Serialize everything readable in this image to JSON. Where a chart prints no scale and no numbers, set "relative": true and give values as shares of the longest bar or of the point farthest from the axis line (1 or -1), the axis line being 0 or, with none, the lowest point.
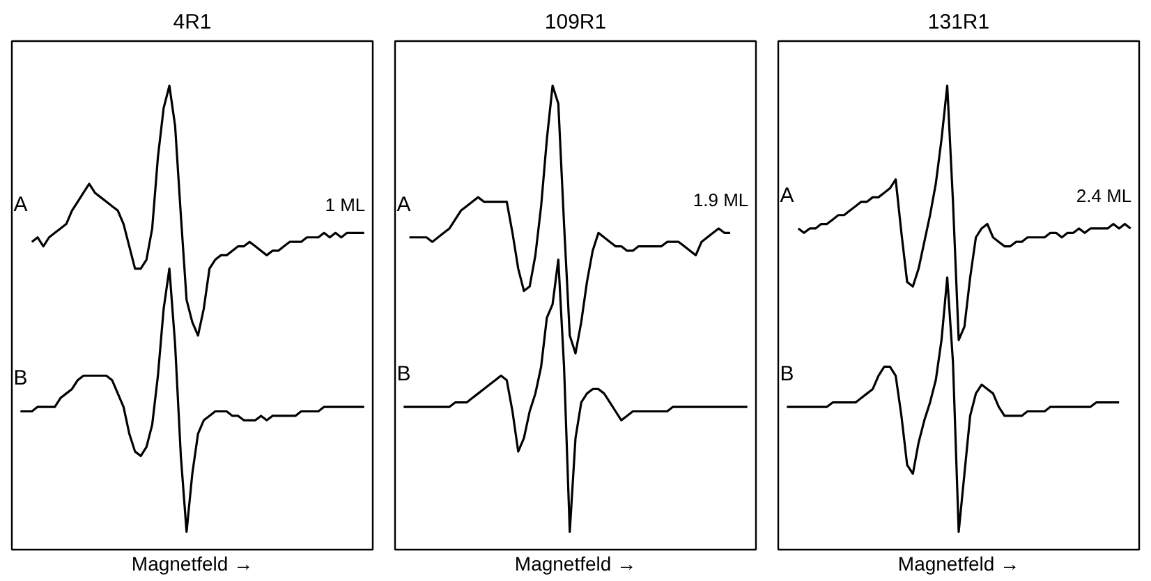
{
  "chart_data": [
    {
      "type": "line",
      "title": "4R1",
      "xlabel": "Magnetfeld →",
      "relative": true,
      "tick_labels": false,
      "grid": false,
      "line_style": "solid",
      "marker": "none",
      "categories": [
        null,
        null,
        null,
        null,
        null,
        null,
        null,
        null,
        null,
        null,
        null,
        null,
        null,
        null,
        null,
        null,
        null,
        null,
        null,
        null,
        null,
        null,
        null,
        null,
        null,
        null,
        null,
        null,
        null,
        null,
        null,
        null,
        null,
        null,
        null,
        null,
        null,
        null,
        null,
        null,
        null,
        null,
        null,
        null,
        null,
        null,
        null,
        null,
        null,
        null,
        null,
        null,
        null,
        null,
        null,
        null,
        null,
        null,
        null,
        null,
        null
      ],
      "series": [
        {
          "name": "A",
          "color": "#000000",
          "values": [
            null,
            null,
            0.65,
            0.66,
            0.64,
            0.66,
            0.67,
            0.68,
            0.69,
            0.72,
            0.74,
            0.76,
            0.78,
            0.76,
            0.75,
            0.74,
            0.73,
            0.72,
            0.69,
            0.64,
            0.59,
            0.59,
            0.61,
            0.68,
            0.84,
            0.95,
            1.0,
            0.91,
            0.71,
            0.52,
            0.47,
            0.44,
            0.5,
            0.59,
            0.61,
            0.62,
            0.62,
            0.63,
            0.64,
            0.64,
            0.65,
            0.64,
            0.63,
            0.62,
            0.63,
            0.63,
            0.64,
            0.65,
            0.65,
            0.65,
            0.66,
            0.66,
            0.66,
            0.67,
            0.66,
            0.67,
            0.66,
            0.67,
            0.67,
            0.67,
            0.67
          ]
        },
        {
          "name": "B",
          "color": "#000000",
          "values": [
            0.27,
            0.27,
            0.27,
            0.28,
            0.28,
            0.28,
            0.28,
            0.3,
            0.31,
            0.32,
            0.34,
            0.35,
            0.35,
            0.35,
            0.35,
            0.35,
            0.34,
            0.31,
            0.28,
            0.22,
            0.18,
            0.17,
            0.19,
            0.24,
            0.35,
            0.5,
            0.59,
            0.42,
            0.17,
            0.0,
            0.13,
            0.22,
            0.25,
            0.26,
            0.27,
            0.27,
            0.27,
            0.26,
            0.26,
            0.25,
            0.25,
            0.25,
            0.26,
            0.25,
            0.26,
            0.26,
            0.26,
            0.26,
            0.26,
            0.27,
            0.27,
            0.27,
            0.27,
            0.28,
            0.28,
            0.28,
            0.28,
            0.28,
            0.28,
            0.28,
            0.28
          ]
        }
      ],
      "annotations": [
        "1 ML"
      ]
    },
    {
      "type": "line",
      "title": "109R1",
      "xlabel": "Magnetfeld →",
      "relative": true,
      "tick_labels": false,
      "grid": false,
      "line_style": "solid",
      "marker": "none",
      "categories": [
        null,
        null,
        null,
        null,
        null,
        null,
        null,
        null,
        null,
        null,
        null,
        null,
        null,
        null,
        null,
        null,
        null,
        null,
        null,
        null,
        null,
        null,
        null,
        null,
        null,
        null,
        null,
        null,
        null,
        null,
        null,
        null,
        null,
        null,
        null,
        null,
        null,
        null,
        null,
        null,
        null,
        null,
        null,
        null,
        null,
        null,
        null,
        null,
        null,
        null,
        null,
        null,
        null,
        null,
        null,
        null,
        null,
        null,
        null,
        null,
        null
      ],
      "series": [
        {
          "name": "A",
          "color": "#000000",
          "values": [
            null,
            0.66,
            0.66,
            0.66,
            0.66,
            0.65,
            0.66,
            0.67,
            0.68,
            0.7,
            0.72,
            0.73,
            0.74,
            0.75,
            0.74,
            0.74,
            0.74,
            0.74,
            0.74,
            0.67,
            0.59,
            0.54,
            0.55,
            0.62,
            0.73,
            0.88,
            1.0,
            0.96,
            0.69,
            0.44,
            0.4,
            0.47,
            0.56,
            0.63,
            0.67,
            0.66,
            0.65,
            0.64,
            0.64,
            0.63,
            0.63,
            0.64,
            0.64,
            0.64,
            0.64,
            0.64,
            0.65,
            0.65,
            0.65,
            0.64,
            0.63,
            0.62,
            0.65,
            0.66,
            0.67,
            0.68,
            0.67,
            0.67,
            null,
            null,
            null
          ]
        },
        {
          "name": "B",
          "color": "#000000",
          "values": [
            0.28,
            0.28,
            0.28,
            0.28,
            0.28,
            0.28,
            0.28,
            0.28,
            0.28,
            0.29,
            0.29,
            0.29,
            0.3,
            0.31,
            0.32,
            0.33,
            0.34,
            0.35,
            0.34,
            0.27,
            0.18,
            0.21,
            0.27,
            0.31,
            0.37,
            0.48,
            0.51,
            0.61,
            0.37,
            0.0,
            0.21,
            0.29,
            0.31,
            0.32,
            0.32,
            0.31,
            0.29,
            0.27,
            0.25,
            0.26,
            0.27,
            0.27,
            0.27,
            0.27,
            0.27,
            0.27,
            0.27,
            0.28,
            0.28,
            0.28,
            0.28,
            0.28,
            0.28,
            0.28,
            0.28,
            0.28,
            0.28,
            0.28,
            0.28,
            0.28,
            0.28
          ]
        }
      ],
      "annotations": [
        "1.9 ML"
      ]
    },
    {
      "type": "line",
      "title": "131R1",
      "xlabel": "Magnetfeld →",
      "relative": true,
      "tick_labels": false,
      "grid": false,
      "line_style": "solid",
      "marker": "none",
      "categories": [
        null,
        null,
        null,
        null,
        null,
        null,
        null,
        null,
        null,
        null,
        null,
        null,
        null,
        null,
        null,
        null,
        null,
        null,
        null,
        null,
        null,
        null,
        null,
        null,
        null,
        null,
        null,
        null,
        null,
        null,
        null,
        null,
        null,
        null,
        null,
        null,
        null,
        null,
        null,
        null,
        null,
        null,
        null,
        null,
        null,
        null,
        null,
        null,
        null,
        null,
        null,
        null,
        null,
        null,
        null,
        null,
        null,
        null,
        null,
        null,
        null
      ],
      "series": [
        {
          "name": "A",
          "color": "#000000",
          "values": [
            null,
            null,
            0.68,
            0.67,
            0.68,
            0.68,
            0.69,
            0.69,
            0.7,
            0.71,
            0.71,
            0.72,
            0.73,
            0.74,
            0.74,
            0.75,
            0.75,
            0.76,
            0.77,
            0.79,
            0.67,
            0.56,
            0.55,
            0.59,
            0.65,
            0.71,
            0.78,
            0.88,
            1.0,
            0.74,
            0.43,
            0.46,
            0.57,
            0.66,
            0.68,
            0.69,
            0.66,
            0.65,
            0.64,
            0.64,
            0.65,
            0.65,
            0.66,
            0.66,
            0.66,
            0.66,
            0.67,
            0.67,
            0.66,
            0.67,
            0.67,
            0.68,
            0.67,
            0.68,
            0.68,
            0.68,
            0.68,
            0.69,
            0.68,
            0.69,
            0.68
          ]
        },
        {
          "name": "B",
          "color": "#000000",
          "values": [
            0.28,
            0.28,
            0.28,
            0.28,
            0.28,
            0.28,
            0.28,
            0.28,
            0.29,
            0.29,
            0.29,
            0.29,
            0.29,
            0.3,
            0.31,
            0.32,
            0.35,
            0.37,
            0.37,
            0.35,
            0.26,
            0.15,
            0.13,
            0.2,
            0.25,
            0.29,
            0.34,
            0.43,
            0.57,
            0.38,
            0.0,
            0.13,
            0.26,
            0.31,
            0.33,
            0.32,
            0.31,
            0.28,
            0.26,
            0.26,
            0.26,
            0.26,
            0.27,
            0.27,
            0.27,
            0.27,
            0.28,
            0.28,
            0.28,
            0.28,
            0.28,
            0.28,
            0.28,
            0.28,
            0.29,
            0.29,
            0.29,
            0.29,
            0.29,
            null,
            null
          ]
        }
      ],
      "annotations": [
        "2.4 ML"
      ]
    }
  ]
}
